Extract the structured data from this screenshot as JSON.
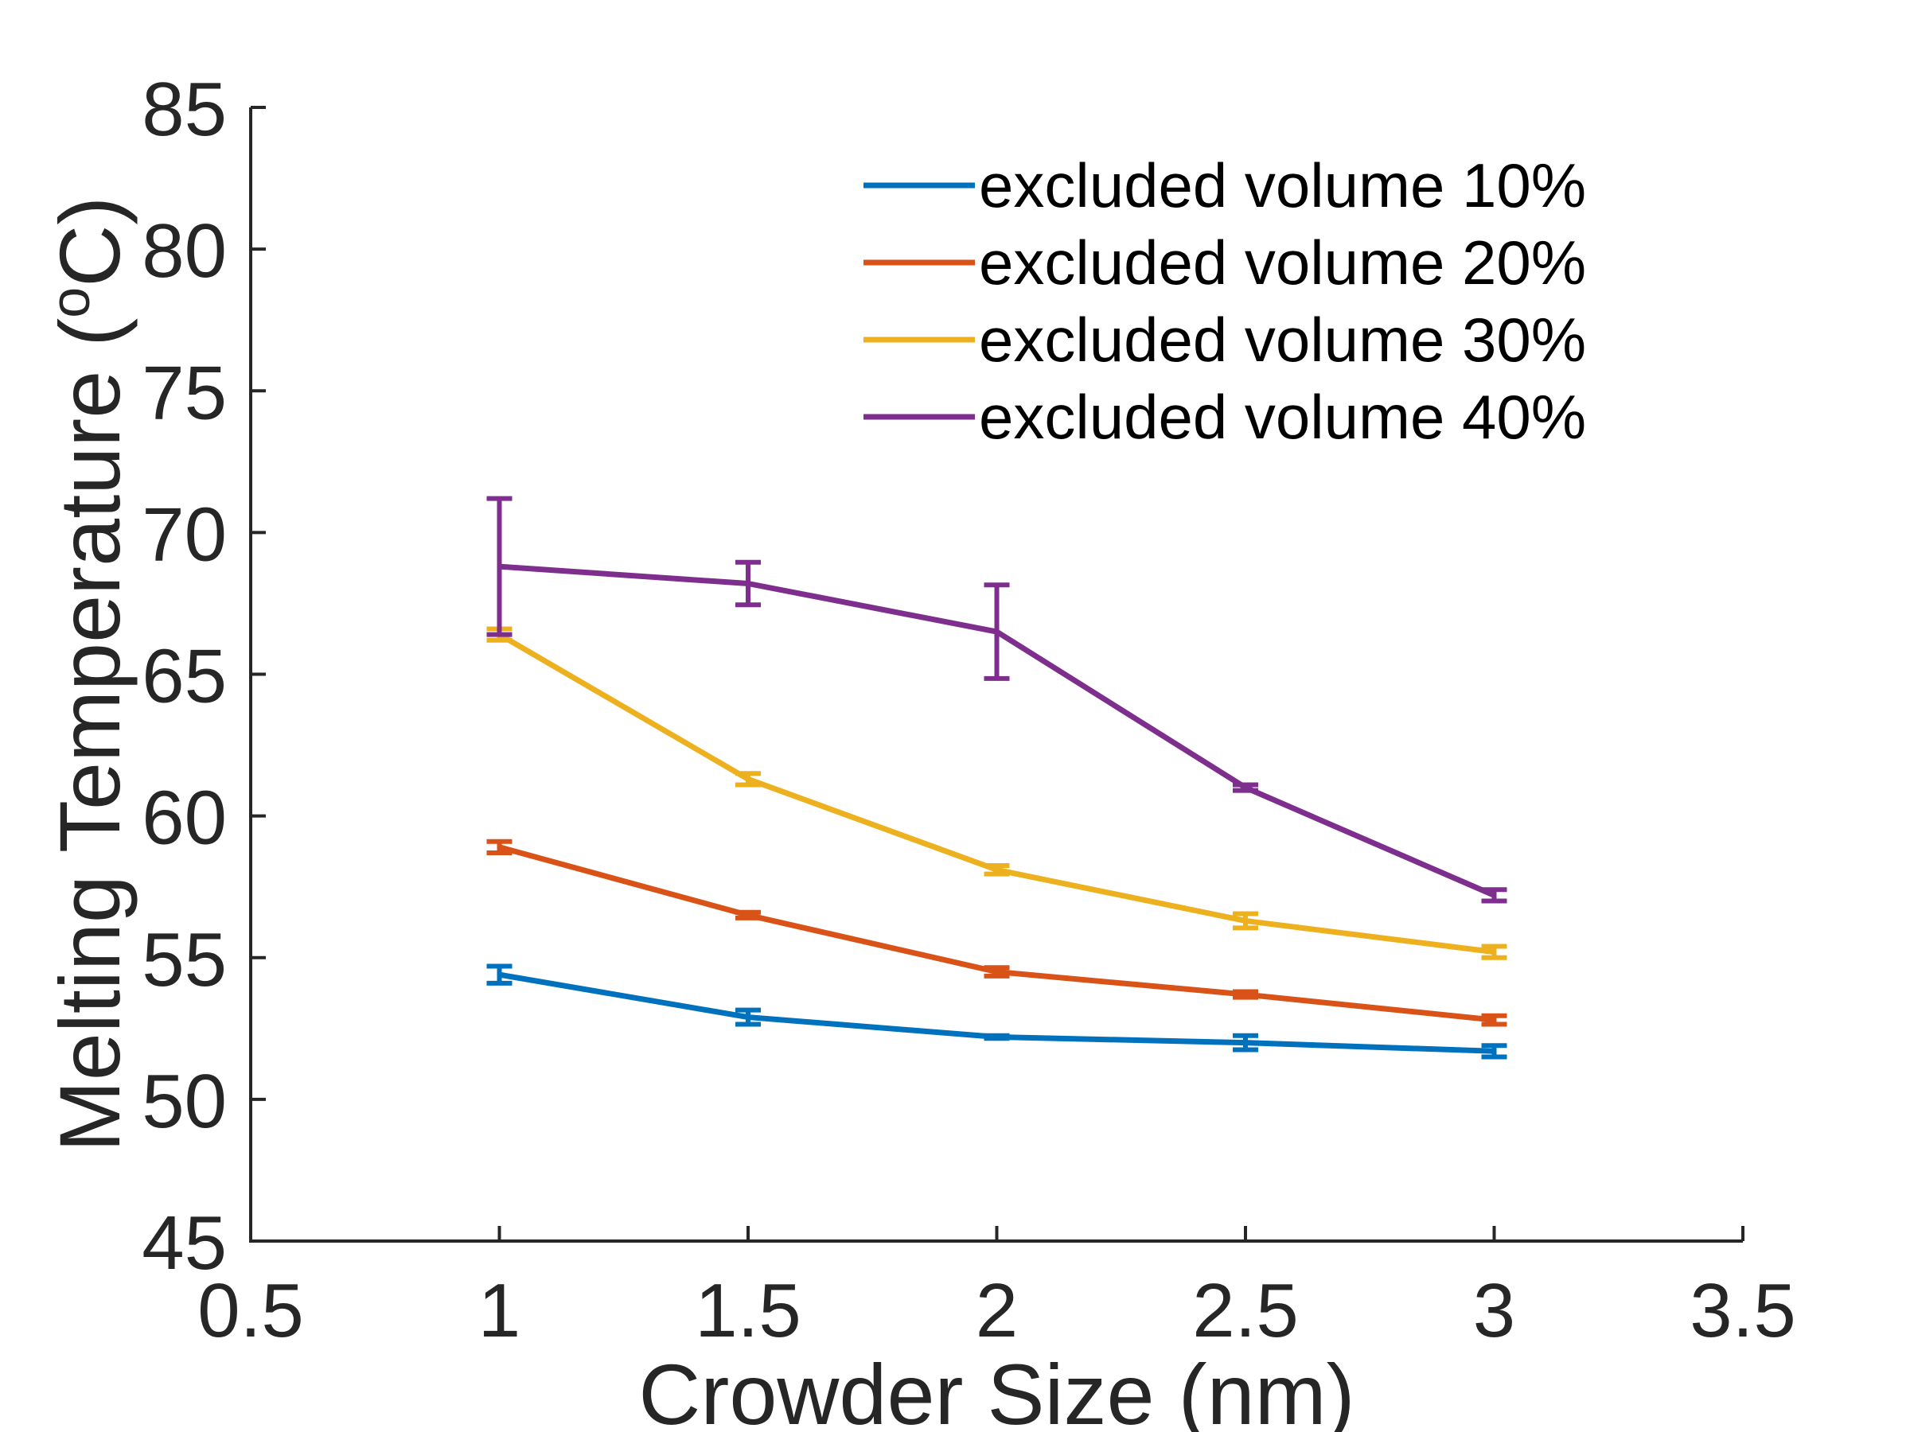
{
  "chart_data": {
    "type": "line",
    "xlabel": "Crowder Size (nm)",
    "ylabel": {
      "prefix": "Melting Temperature (",
      "superscript": "o",
      "suffix": "C)"
    },
    "xlim": [
      0.5,
      3.5
    ],
    "ylim": [
      45,
      85
    ],
    "xticks": [
      "0.5",
      "1",
      "1.5",
      "2",
      "2.5",
      "3",
      "3.5"
    ],
    "yticks": [
      "45",
      "50",
      "55",
      "60",
      "65",
      "70",
      "75",
      "80",
      "85"
    ],
    "grid": false,
    "legend_position": "top-right",
    "x": [
      1,
      1.5,
      2,
      2.5,
      3
    ],
    "series": [
      {
        "name": "excluded volume 10%",
        "color": "#0072BD",
        "values": [
          54.4,
          52.9,
          52.2,
          52.0,
          51.7
        ],
        "errors": [
          0.3,
          0.25,
          0.05,
          0.25,
          0.2
        ]
      },
      {
        "name": "excluded volume 20%",
        "color": "#D95319",
        "values": [
          58.9,
          56.5,
          54.5,
          53.7,
          52.8
        ],
        "errors": [
          0.2,
          0.1,
          0.15,
          0.1,
          0.15
        ]
      },
      {
        "name": "excluded volume 30%",
        "color": "#EDB120",
        "values": [
          66.4,
          61.3,
          58.1,
          56.3,
          55.2
        ],
        "errors": [
          0.2,
          0.2,
          0.15,
          0.25,
          0.2
        ]
      },
      {
        "name": "excluded volume 40%",
        "color": "#7E2F8E",
        "values": [
          68.8,
          68.2,
          66.5,
          61.0,
          57.2
        ],
        "errors": [
          2.4,
          0.75,
          1.65,
          0.1,
          0.2
        ]
      }
    ]
  }
}
